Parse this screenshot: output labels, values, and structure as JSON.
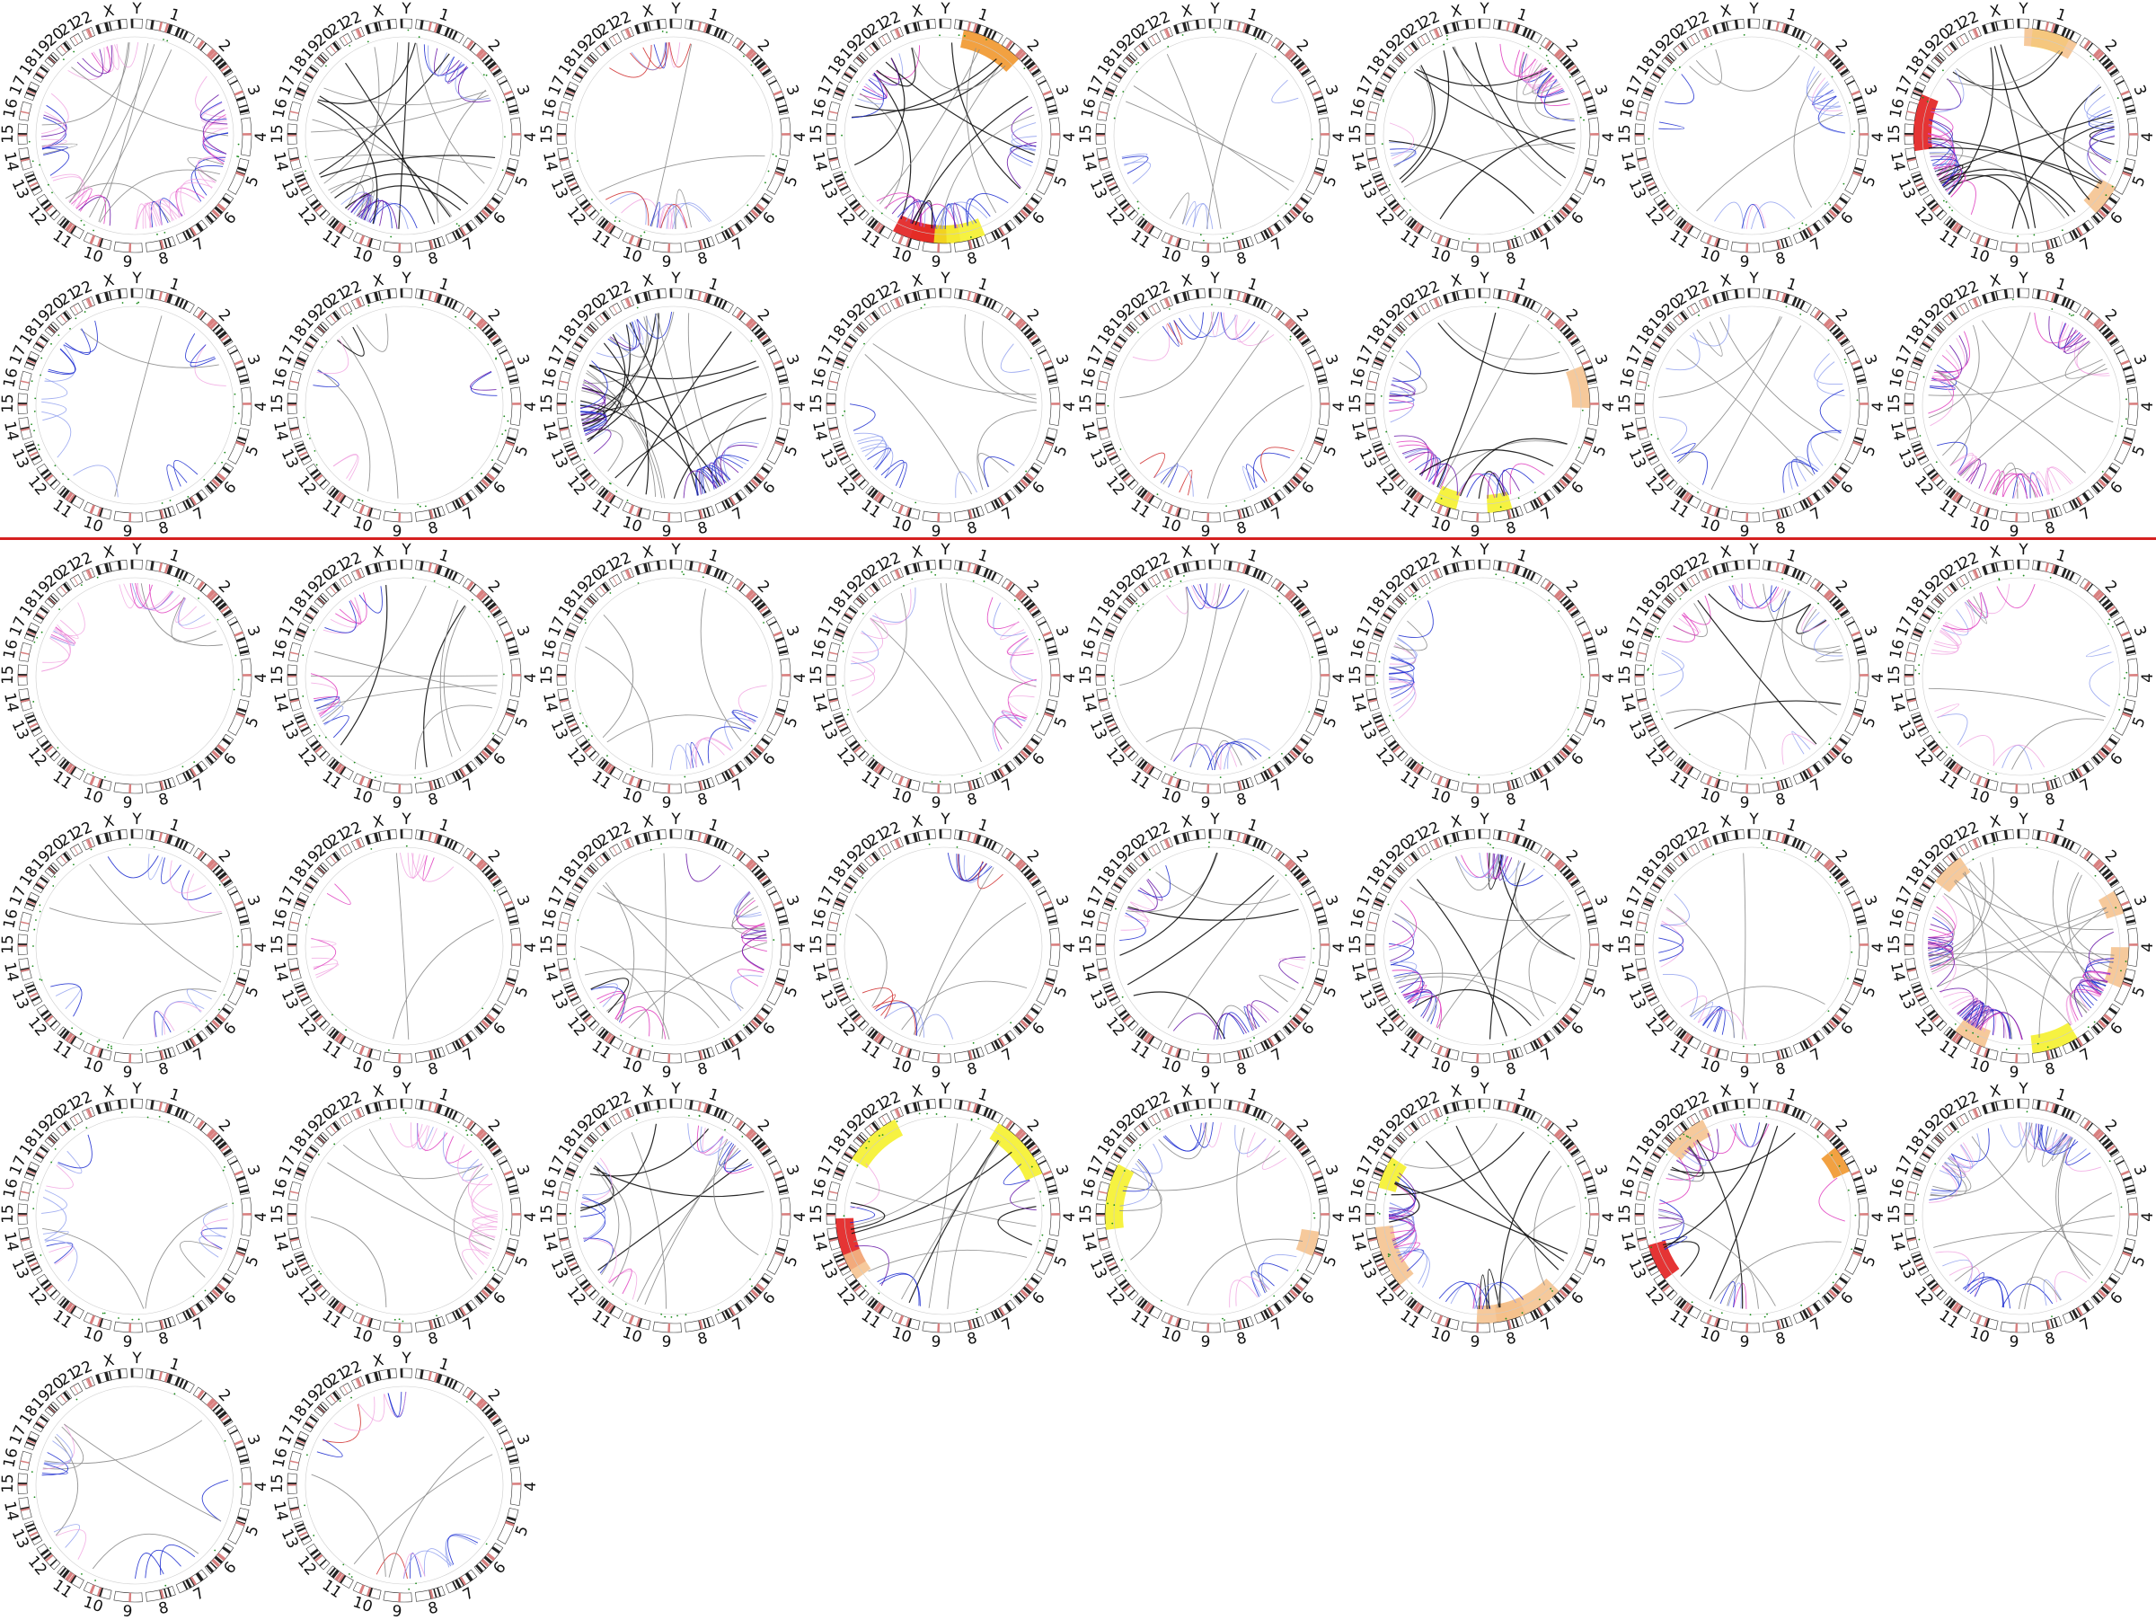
{
  "figure": {
    "chromosome_labels": [
      "1",
      "2",
      "3",
      "4",
      "5",
      "6",
      "7",
      "8",
      "9",
      "10",
      "11",
      "12",
      "13",
      "14",
      "15",
      "16",
      "17",
      "18",
      "19",
      "20",
      "21",
      "22",
      "X",
      "Y"
    ],
    "colors": {
      "divider": "#d62020",
      "ideogram_dark": "#222222",
      "ideogram_centromere": "#d98080",
      "link_grey": "#8a8a8a",
      "link_black": "#111111",
      "link_blue": "#2030d0",
      "link_light_blue": "#8899ee",
      "link_magenta": "#e040c0",
      "link_pink": "#f0a0e0",
      "link_purple": "#6a1aa8",
      "link_red": "#d03030",
      "snv_dot": "#1a8a1a",
      "highlight_orange": "#f5c08a",
      "highlight_yellow": "#f5f020",
      "highlight_red": "#e01010",
      "highlight_dark_orange": "#f09020"
    },
    "groups": [
      {
        "name": "upper",
        "plot_count": 16
      },
      {
        "name": "lower",
        "plot_count": 26
      }
    ],
    "plots": [
      {
        "id": 1,
        "links": 60,
        "style": "magenta-heavy",
        "highlights": []
      },
      {
        "id": 2,
        "links": 40,
        "style": "black-blue",
        "highlights": []
      },
      {
        "id": 3,
        "links": 22,
        "style": "mixed-light",
        "highlights": []
      },
      {
        "id": 4,
        "links": 45,
        "style": "blue-black",
        "highlights": [
          "orange",
          "red",
          "orange-dark",
          "yellow"
        ]
      },
      {
        "id": 5,
        "links": 12,
        "style": "sparse-blue",
        "highlights": []
      },
      {
        "id": 6,
        "links": 35,
        "style": "mixed",
        "highlights": []
      },
      {
        "id": 7,
        "links": 18,
        "style": "blue",
        "highlights": []
      },
      {
        "id": 8,
        "links": 50,
        "style": "blue-black",
        "highlights": [
          "red",
          "orange",
          "yellow",
          "orange"
        ]
      },
      {
        "id": 9,
        "links": 16,
        "style": "blue",
        "highlights": []
      },
      {
        "id": 10,
        "links": 10,
        "style": "black-purple",
        "highlights": []
      },
      {
        "id": 11,
        "links": 60,
        "style": "black-blue",
        "highlights": []
      },
      {
        "id": 12,
        "links": 18,
        "style": "sparse-blue",
        "highlights": []
      },
      {
        "id": 13,
        "links": 22,
        "style": "mixed-light",
        "highlights": []
      },
      {
        "id": 14,
        "links": 35,
        "style": "blue-black",
        "highlights": [
          "orange",
          "yellow",
          "yellow"
        ]
      },
      {
        "id": 15,
        "links": 20,
        "style": "sparse-blue",
        "highlights": []
      },
      {
        "id": 16,
        "links": 50,
        "style": "magenta-heavy",
        "highlights": []
      },
      {
        "id": 17,
        "links": 20,
        "style": "magenta",
        "highlights": []
      },
      {
        "id": 18,
        "links": 22,
        "style": "mixed",
        "highlights": []
      },
      {
        "id": 19,
        "links": 15,
        "style": "blue",
        "highlights": []
      },
      {
        "id": 20,
        "links": 24,
        "style": "magenta",
        "highlights": []
      },
      {
        "id": 21,
        "links": 20,
        "style": "blue",
        "highlights": []
      },
      {
        "id": 22,
        "links": 16,
        "style": "blue",
        "highlights": []
      },
      {
        "id": 23,
        "links": 28,
        "style": "mixed",
        "highlights": []
      },
      {
        "id": 24,
        "links": 22,
        "style": "magenta",
        "highlights": []
      },
      {
        "id": 25,
        "links": 16,
        "style": "blue",
        "highlights": []
      },
      {
        "id": 26,
        "links": 12,
        "style": "magenta",
        "highlights": []
      },
      {
        "id": 27,
        "links": 30,
        "style": "blue-black",
        "highlights": []
      },
      {
        "id": 28,
        "links": 16,
        "style": "mixed-light",
        "highlights": []
      },
      {
        "id": 29,
        "links": 26,
        "style": "black-purple",
        "highlights": []
      },
      {
        "id": 30,
        "links": 40,
        "style": "blue-black",
        "highlights": []
      },
      {
        "id": 31,
        "links": 16,
        "style": "blue",
        "highlights": []
      },
      {
        "id": 32,
        "links": 80,
        "style": "magenta-heavy",
        "highlights": [
          "yellow",
          "orange",
          "orange",
          "orange",
          "orange"
        ]
      },
      {
        "id": 33,
        "links": 16,
        "style": "blue",
        "highlights": []
      },
      {
        "id": 34,
        "links": 24,
        "style": "magenta",
        "highlights": []
      },
      {
        "id": 35,
        "links": 28,
        "style": "mixed",
        "highlights": []
      },
      {
        "id": 36,
        "links": 18,
        "style": "black-purple",
        "highlights": [
          "red",
          "yellow",
          "yellow",
          "orange"
        ]
      },
      {
        "id": 37,
        "links": 22,
        "style": "blue",
        "highlights": [
          "yellow",
          "orange"
        ]
      },
      {
        "id": 38,
        "links": 36,
        "style": "blue-black",
        "highlights": [
          "yellow",
          "orange",
          "orange",
          "orange",
          "orange"
        ]
      },
      {
        "id": 39,
        "links": 30,
        "style": "blue-black",
        "highlights": [
          "orange",
          "red",
          "orange-dark"
        ]
      },
      {
        "id": 40,
        "links": 50,
        "style": "blue",
        "highlights": []
      },
      {
        "id": 41,
        "links": 16,
        "style": "blue",
        "highlights": []
      },
      {
        "id": 42,
        "links": 18,
        "style": "mixed-light",
        "highlights": []
      }
    ]
  }
}
